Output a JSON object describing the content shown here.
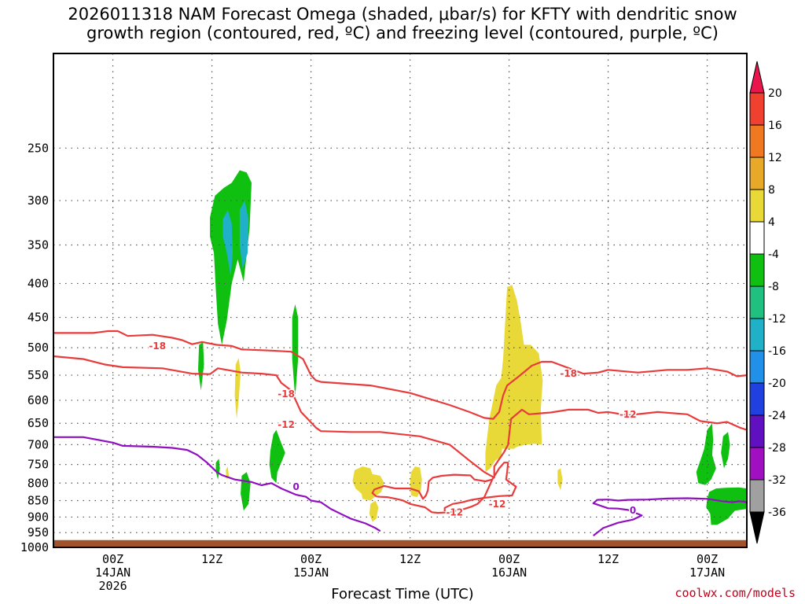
{
  "chart_data": {
    "type": "heatmap",
    "title_line1": "2026011318 NAM Forecast Omega (shaded, μbar/s) for KFTY with dendritic snow",
    "title_line2": "growth region (contoured, red, ºC) and freezing level (contoured, purple, ºC)",
    "xlabel": "Forecast Time (UTC)",
    "ylabel": "",
    "y_axis": {
      "scale": "log-pressure",
      "ticks": [
        250,
        300,
        350,
        400,
        450,
        500,
        550,
        600,
        650,
        700,
        750,
        800,
        850,
        900,
        950,
        1000
      ],
      "range_hpa": [
        180,
        1000
      ]
    },
    "x_axis": {
      "range_hours": [
        -6,
        64
      ],
      "ticks": [
        {
          "hour": 0,
          "label": "00Z",
          "sub1": "14JAN",
          "sub2": "2026"
        },
        {
          "hour": 10,
          "label": "12Z",
          "sub1": "",
          "sub2": ""
        },
        {
          "hour": 20,
          "label": "00Z",
          "sub1": "15JAN",
          "sub2": ""
        },
        {
          "hour": 30,
          "label": "12Z",
          "sub1": "",
          "sub2": ""
        },
        {
          "hour": 40,
          "label": "00Z",
          "sub1": "16JAN",
          "sub2": ""
        },
        {
          "hour": 50,
          "label": "12Z",
          "sub1": "",
          "sub2": ""
        },
        {
          "hour": 60,
          "label": "00Z",
          "sub1": "17JAN",
          "sub2": ""
        }
      ]
    },
    "grid": true,
    "colorbar": {
      "labels": [
        "20",
        "16",
        "12",
        "8",
        "4",
        "-4",
        "-8",
        "-12",
        "-16",
        "-20",
        "-24",
        "-28",
        "-32",
        "-36"
      ],
      "colors": [
        "#e8164c",
        "#f04030",
        "#f07820",
        "#e8a828",
        "#e8d838",
        "#ffffff",
        "#10c010",
        "#20c080",
        "#20b0c8",
        "#2090e8",
        "#2040e0",
        "#6010c0",
        "#a010c0",
        "#a0a0a0",
        "#000000"
      ]
    },
    "contour_labels": [
      {
        "text": "-18",
        "color": "#e83c3c"
      },
      {
        "text": "-18",
        "color": "#e83c3c"
      },
      {
        "text": "-18",
        "color": "#e83c3c"
      },
      {
        "text": "-12",
        "color": "#e83c3c"
      },
      {
        "text": "-12",
        "color": "#e83c3c"
      },
      {
        "text": "-12",
        "color": "#e83c3c"
      },
      {
        "text": "-12",
        "color": "#e83c3c"
      },
      {
        "text": "0",
        "color": "#9010c0"
      },
      {
        "text": "0",
        "color": "#9010c0"
      }
    ],
    "terrain_color": "#a0522d",
    "credit": "coolwx.com/models"
  }
}
